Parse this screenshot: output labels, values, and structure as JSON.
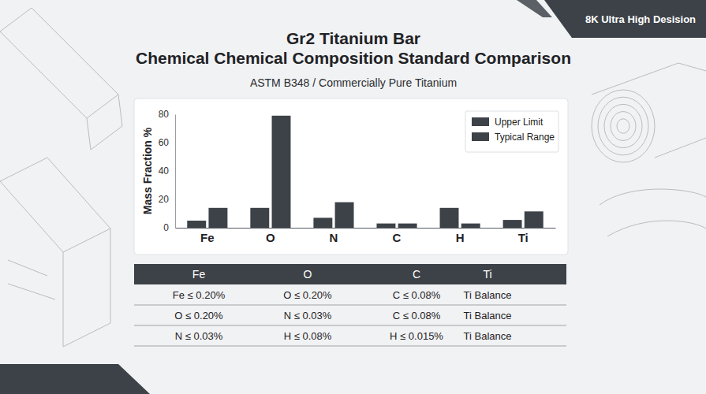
{
  "header": {
    "badge": "8K Ultra High Desision",
    "title": [
      "Gr2 Titanium Bar",
      "Chemical Chemical Composition Standard Comparison"
    ],
    "subtitle": "ASTM B348 / Commercially Pure Titanium"
  },
  "chart_data": {
    "type": "bar",
    "y_label": "Mass Fraction %",
    "categories": [
      "Fe",
      "O",
      "N",
      "C",
      "H",
      "Ti"
    ],
    "series": [
      {
        "name": "Upper Limit",
        "color": "#3d4248",
        "values": [
          5,
          14,
          7,
          3,
          14,
          5.5
        ]
      },
      {
        "name": "Typical Range",
        "color": "#3d4248",
        "values": [
          14,
          79,
          18,
          3,
          3,
          11.5
        ]
      }
    ],
    "ylim": [
      0,
      80
    ],
    "yticks": [
      0,
      20,
      40,
      60,
      80
    ],
    "grid": false,
    "legend": "upper right"
  },
  "table": {
    "header": [
      "Fe",
      "O",
      "C",
      "Ti"
    ],
    "rows": [
      [
        "Fe ≤ 0.20%",
        "O ≤ 0.20%",
        "C ≤ 0.08%",
        "Ti Balance"
      ],
      [
        "O ≤ 0.20%",
        "N ≤ 0.03%",
        "C ≤ 0.08%",
        "Ti Balance"
      ],
      [
        "N ≤ 0.03%",
        "H ≤ 0.08%",
        "H ≤ 0.015%",
        "Ti Balance"
      ]
    ]
  }
}
